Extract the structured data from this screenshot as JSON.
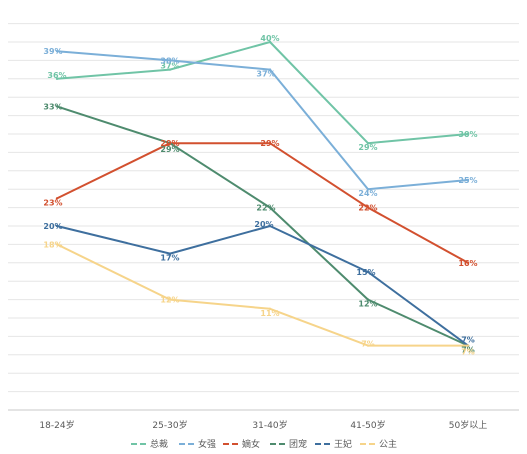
{
  "chart_data": {
    "type": "line",
    "categories": [
      "18-24岁",
      "25-30岁",
      "31-40岁",
      "41-50岁",
      "50岁以上"
    ],
    "ylim": [
      0,
      45
    ],
    "grid": true,
    "legend_position": "bottom",
    "series": [
      {
        "name": "总裁",
        "color": "#70C4A6",
        "values": [
          36,
          37,
          40,
          29,
          30
        ],
        "labels": [
          "36%",
          "37%",
          "40%",
          "29%",
          "30%"
        ]
      },
      {
        "name": "女强",
        "color": "#7BAFD8",
        "values": [
          39,
          38,
          37,
          24,
          25
        ],
        "labels": [
          "39%",
          "38%",
          "37%",
          "24%",
          "25%"
        ]
      },
      {
        "name": "嫡女",
        "color": "#D2502F",
        "values": [
          23,
          29,
          29,
          22,
          16
        ],
        "labels": [
          "23%",
          "29%",
          "29%",
          "22%",
          "16%"
        ]
      },
      {
        "name": "团宠",
        "color": "#4E8B6E",
        "values": [
          33,
          29,
          22,
          12,
          7
        ],
        "labels": [
          "33%",
          "29%",
          "22%",
          "12%",
          "7%"
        ]
      },
      {
        "name": "王妃",
        "color": "#3E6F9E",
        "values": [
          20,
          17,
          20,
          15,
          7
        ],
        "labels": [
          "20%",
          "17%",
          "20%",
          "15%",
          "7%"
        ]
      },
      {
        "name": "公主",
        "color": "#F6D48A",
        "values": [
          18,
          12,
          11,
          7,
          7
        ],
        "labels": [
          "18%",
          "12%",
          "11%",
          "7%",
          "7%"
        ]
      }
    ]
  }
}
